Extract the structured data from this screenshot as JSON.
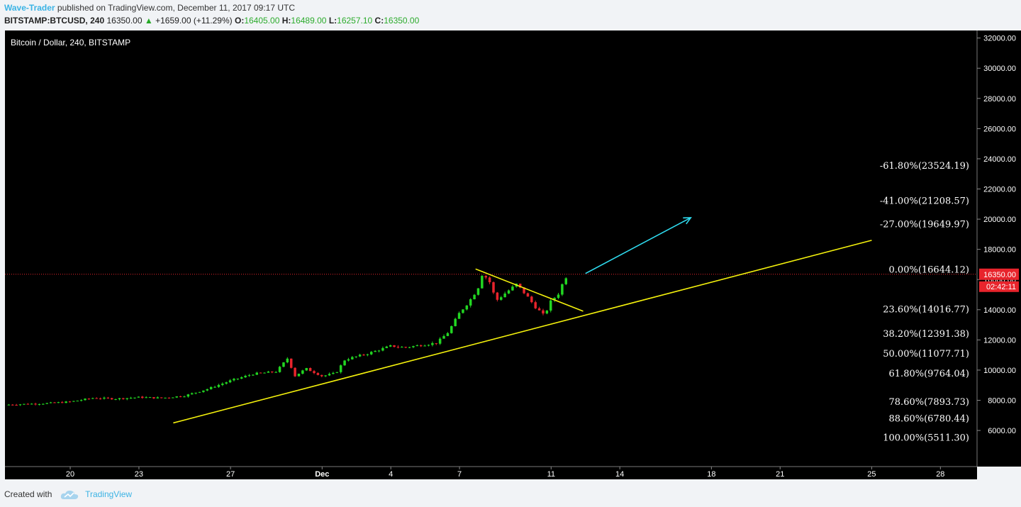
{
  "header": {
    "author": "Wave-Trader",
    "published_text": " published on TradingView.com, December 11, 2017 09:17 UTC",
    "symbol": "BITSTAMP:BTCUSD, 240",
    "price": "16350.00",
    "change": "+1659.00 (+11.29%)",
    "o_label": "O:",
    "o_value": "16405.00",
    "h_label": "H:",
    "h_value": "16489.00",
    "l_label": "L:",
    "l_value": "16257.10",
    "c_label": "C:",
    "c_value": "16350.00"
  },
  "footer": {
    "created_with": "Created with",
    "brand": "TradingView"
  },
  "colors": {
    "up": "#22d622",
    "down": "#e8242c",
    "trendline": "#f4f10c",
    "arrow": "#2fdcf0",
    "price_line": "#e8242c",
    "fib_text": "#ffffff",
    "background": "#000000"
  },
  "chart_data": {
    "type": "candlestick",
    "title": "Bitcoin / Dollar, 240, BITSTAMP",
    "ylim": [
      4500,
      32500
    ],
    "y_ticks": [
      6000,
      8000,
      10000,
      12000,
      14000,
      16000,
      18000,
      20000,
      22000,
      24000,
      26000,
      28000,
      30000,
      32000
    ],
    "y_tick_labels": [
      "6000.00",
      "8000.00",
      "10000.00",
      "12000.00",
      "14000.00",
      "16000.00",
      "18000.00",
      "20000.00",
      "22000.00",
      "24000.00",
      "26000.00",
      "28000.00",
      "30000.00",
      "32000.00"
    ],
    "x_ticks": [
      {
        "label": "20",
        "day": 20
      },
      {
        "label": "23",
        "day": 23
      },
      {
        "label": "27",
        "day": 27
      },
      {
        "label": "Dec",
        "day": 31
      },
      {
        "label": "4",
        "day": 34
      },
      {
        "label": "7",
        "day": 37
      },
      {
        "label": "11",
        "day": 41
      },
      {
        "label": "14",
        "day": 44
      },
      {
        "label": "18",
        "day": 48
      },
      {
        "label": "21",
        "day": 51
      },
      {
        "label": "25",
        "day": 55
      },
      {
        "label": "28",
        "day": 58
      }
    ],
    "x_note": "day counted from November 0 (Nov 20 = 20, Dec 1 = 31)",
    "xlim_days": [
      17.15,
      59.6
    ],
    "price_waypoints": [
      [
        17.15,
        7700
      ],
      [
        19,
        7800
      ],
      [
        20,
        7900
      ],
      [
        21,
        8150
      ],
      [
        22,
        8100
      ],
      [
        23,
        8200
      ],
      [
        24,
        8150
      ],
      [
        25,
        8300
      ],
      [
        26,
        8750
      ],
      [
        27,
        9300
      ],
      [
        28,
        9750
      ],
      [
        29,
        9900
      ],
      [
        29.5,
        10800
      ],
      [
        29.8,
        9600
      ],
      [
        30.3,
        10100
      ],
      [
        31,
        9600
      ],
      [
        31.6,
        9800
      ],
      [
        32,
        10700
      ],
      [
        32.5,
        10900
      ],
      [
        33,
        11100
      ],
      [
        33.6,
        11400
      ],
      [
        34,
        11600
      ],
      [
        34.6,
        11500
      ],
      [
        35.3,
        11650
      ],
      [
        36,
        11800
      ],
      [
        36.5,
        12500
      ],
      [
        37,
        13800
      ],
      [
        37.4,
        14500
      ],
      [
        37.8,
        15400
      ],
      [
        38,
        16400
      ],
      [
        38.3,
        15900
      ],
      [
        38.6,
        14600
      ],
      [
        39,
        15100
      ],
      [
        39.5,
        15700
      ],
      [
        40,
        14800
      ],
      [
        40.3,
        14200
      ],
      [
        40.7,
        13600
      ],
      [
        41,
        14600
      ],
      [
        41.3,
        15000
      ],
      [
        41.6,
        16100
      ],
      [
        41.8,
        16350
      ]
    ],
    "last_price": 16350,
    "last_price_label": "16350.00",
    "countdown": "02:42:11",
    "trendlines": [
      {
        "name": "support",
        "from": [
          24.5,
          6500
        ],
        "to": [
          55,
          18600
        ]
      },
      {
        "name": "wedge-top",
        "from": [
          37.7,
          16700
        ],
        "to": [
          42.4,
          13900
        ]
      }
    ],
    "projection_arrow": {
      "from": [
        42.5,
        16400
      ],
      "to": [
        47.1,
        20100
      ]
    },
    "fib_levels": [
      {
        "label": "-61.80%(23524.19)",
        "value": 23524.19
      },
      {
        "label": "-41.00%(21208.57)",
        "value": 21208.57
      },
      {
        "label": "-27.00%(19649.97)",
        "value": 19649.97
      },
      {
        "label": "0.00%(16644.12)",
        "value": 16644.12
      },
      {
        "label": "23.60%(14016.77)",
        "value": 14016.77
      },
      {
        "label": "38.20%(12391.38)",
        "value": 12391.38
      },
      {
        "label": "50.00%(11077.71)",
        "value": 11077.71
      },
      {
        "label": "61.80%(9764.04)",
        "value": 9764.04
      },
      {
        "label": "78.60%(7893.73)",
        "value": 7893.73
      },
      {
        "label": "88.60%(6780.44)",
        "value": 6780.44
      },
      {
        "label": "100.00%(5511.30)",
        "value": 5511.3
      }
    ]
  }
}
